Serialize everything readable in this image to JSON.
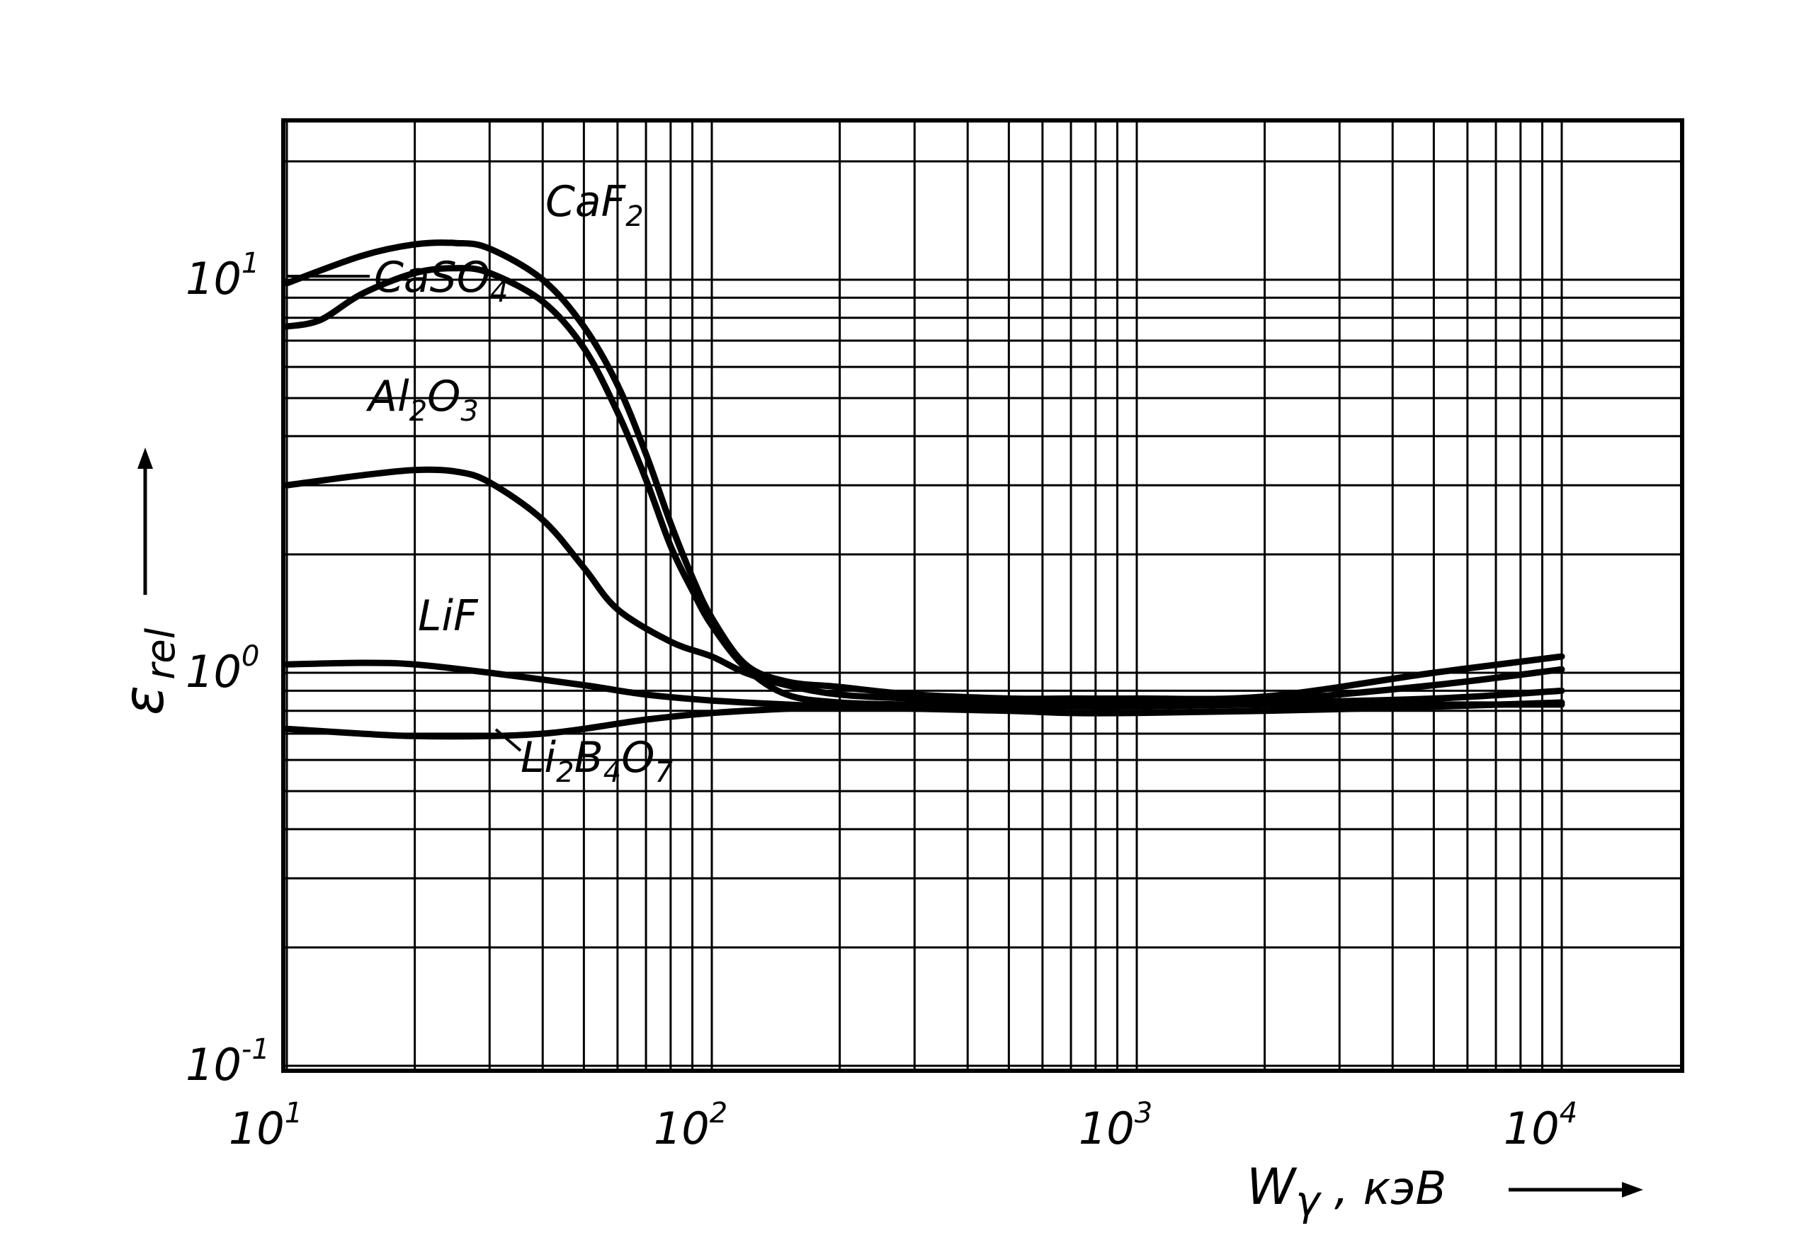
{
  "chart_data": {
    "type": "line",
    "title": "",
    "xlabel": {
      "main": "W",
      "sub": "γ",
      "rest": " , кэВ"
    },
    "ylabel": {
      "main": "ε",
      "sub": "rel"
    },
    "x_scale": "log",
    "y_scale": "log",
    "xlim": [
      10,
      20000
    ],
    "ylim": [
      0.1,
      20
    ],
    "grid": true,
    "x_ticks": [
      {
        "value": 10,
        "base": "10",
        "exp": "1"
      },
      {
        "value": 100,
        "base": "10",
        "exp": "2"
      },
      {
        "value": 1000,
        "base": "10",
        "exp": "3"
      },
      {
        "value": 10000,
        "base": "10",
        "exp": "4"
      }
    ],
    "y_ticks": [
      {
        "value": 0.1,
        "base": "10",
        "exp": "-1"
      },
      {
        "value": 1,
        "base": "10",
        "exp": "0"
      },
      {
        "value": 10,
        "base": "10",
        "exp": "1"
      }
    ],
    "series": [
      {
        "name": "CaF2",
        "label_main": [
          "CaF",
          ""
        ],
        "label_subs": [
          "2"
        ],
        "x": [
          10,
          15,
          20,
          25,
          30,
          40,
          50,
          60,
          70,
          80,
          90,
          100,
          120,
          150,
          200,
          300,
          500,
          700,
          1000,
          2000,
          5000,
          10000
        ],
        "y": [
          9.8,
          11.5,
          12.3,
          12.4,
          12.0,
          10.0,
          7.6,
          5.4,
          3.6,
          2.4,
          1.75,
          1.38,
          1.05,
          0.95,
          0.92,
          0.88,
          0.86,
          0.86,
          0.86,
          0.87,
          1.0,
          1.1
        ]
      },
      {
        "name": "CaSO4",
        "label_main": [
          "CaSO",
          ""
        ],
        "label_subs": [
          "4"
        ],
        "x": [
          10,
          12,
          15,
          20,
          25,
          30,
          40,
          50,
          60,
          70,
          80,
          90,
          100,
          120,
          150,
          200,
          300,
          500,
          700,
          1000,
          2000,
          5000,
          10000
        ],
        "y": [
          7.6,
          7.9,
          9.2,
          10.4,
          10.7,
          10.4,
          8.8,
          6.7,
          4.6,
          3.1,
          2.1,
          1.62,
          1.32,
          1.03,
          0.88,
          0.84,
          0.83,
          0.83,
          0.83,
          0.83,
          0.85,
          0.93,
          1.02
        ]
      },
      {
        "name": "Al2O3",
        "label_main": [
          "Al",
          "O",
          ""
        ],
        "label_subs": [
          "2",
          "3"
        ],
        "x": [
          10,
          15,
          20,
          25,
          30,
          40,
          50,
          60,
          80,
          100,
          120,
          150,
          200,
          300,
          500,
          700,
          1000,
          2000,
          5000,
          10000
        ],
        "y": [
          3.0,
          3.18,
          3.28,
          3.25,
          3.05,
          2.45,
          1.85,
          1.45,
          1.2,
          1.1,
          1.0,
          0.93,
          0.88,
          0.86,
          0.85,
          0.84,
          0.84,
          0.84,
          0.86,
          0.9
        ]
      },
      {
        "name": "LiF",
        "label_main": [
          "LiF"
        ],
        "label_subs": [],
        "x": [
          10,
          15,
          20,
          30,
          50,
          70,
          100,
          150,
          200,
          300,
          500,
          700,
          1000,
          2000,
          5000,
          10000
        ],
        "y": [
          1.05,
          1.06,
          1.05,
          1.0,
          0.93,
          0.88,
          0.85,
          0.83,
          0.82,
          0.81,
          0.8,
          0.79,
          0.79,
          0.8,
          0.82,
          0.84
        ]
      },
      {
        "name": "Li2B4O7",
        "label_main": [
          "Li",
          "B",
          "O",
          ""
        ],
        "label_subs": [
          "2",
          "4",
          "7"
        ],
        "x": [
          10,
          15,
          20,
          30,
          40,
          50,
          70,
          100,
          150,
          200,
          300,
          500,
          700,
          1000,
          2000,
          5000,
          10000
        ],
        "y": [
          0.72,
          0.7,
          0.69,
          0.69,
          0.7,
          0.72,
          0.76,
          0.79,
          0.81,
          0.82,
          0.82,
          0.82,
          0.82,
          0.82,
          0.83,
          0.83,
          0.83
        ]
      }
    ]
  }
}
